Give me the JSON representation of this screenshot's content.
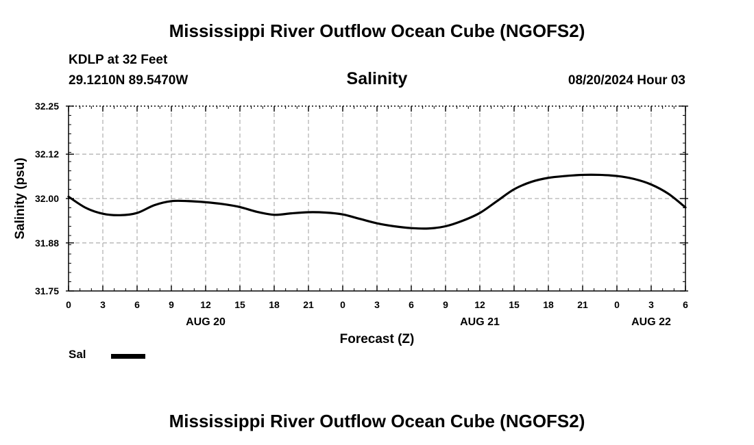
{
  "header": {
    "title_top": "Mississippi River Outflow Ocean Cube (NGOFS2)",
    "station": "KDLP at 32 Feet",
    "coords": "29.1210N  89.5470W",
    "variable": "Salinity",
    "datetime": "08/20/2024 Hour 03",
    "title_bottom": "Mississippi River Outflow Ocean Cube (NGOFS2)"
  },
  "legend": {
    "label": "Sal",
    "color": "#000000"
  },
  "chart_data": {
    "type": "line",
    "title": "Salinity",
    "xlabel": "Forecast (Z)",
    "ylabel": "Salinity (psu)",
    "ylim": [
      31.75,
      32.25
    ],
    "xlim": [
      0,
      54
    ],
    "y_ticks": [
      31.75,
      31.88,
      32.0,
      32.12,
      32.25
    ],
    "y_tick_labels": [
      "31.75",
      "31.88",
      "32.00",
      "32.12",
      "32.25"
    ],
    "x_ticks": [
      0,
      3,
      6,
      9,
      12,
      15,
      18,
      21,
      24,
      27,
      30,
      33,
      36,
      39,
      42,
      45,
      48,
      51,
      54
    ],
    "x_tick_labels": [
      "0",
      "3",
      "6",
      "9",
      "12",
      "15",
      "18",
      "21",
      "0",
      "3",
      "6",
      "9",
      "12",
      "15",
      "18",
      "21",
      "0",
      "3",
      "6"
    ],
    "day_labels": [
      {
        "x": 12,
        "label": "AUG 20"
      },
      {
        "x": 36,
        "label": "AUG 21"
      },
      {
        "x": 51,
        "label": "AUG 22"
      }
    ],
    "grid": true,
    "series": [
      {
        "name": "Sal",
        "color": "#000000",
        "x": [
          0,
          1.5,
          3,
          4.5,
          6,
          7.5,
          9,
          10.5,
          12,
          13.5,
          15,
          16.5,
          18,
          19.5,
          21,
          22.5,
          24,
          25.5,
          27,
          28.5,
          30,
          31.5,
          33,
          34.5,
          36,
          37.5,
          39,
          40.5,
          42,
          43.5,
          45,
          46.5,
          48,
          49.5,
          51,
          52.5,
          54
        ],
        "values": [
          32.005,
          31.975,
          31.959,
          31.955,
          31.961,
          31.982,
          31.993,
          31.993,
          31.99,
          31.985,
          31.977,
          31.964,
          31.956,
          31.96,
          31.963,
          31.962,
          31.957,
          31.945,
          31.933,
          31.925,
          31.92,
          31.919,
          31.925,
          31.94,
          31.961,
          31.993,
          32.025,
          32.045,
          32.056,
          32.061,
          32.064,
          32.064,
          32.061,
          32.053,
          32.038,
          32.013,
          31.976
        ]
      }
    ]
  }
}
